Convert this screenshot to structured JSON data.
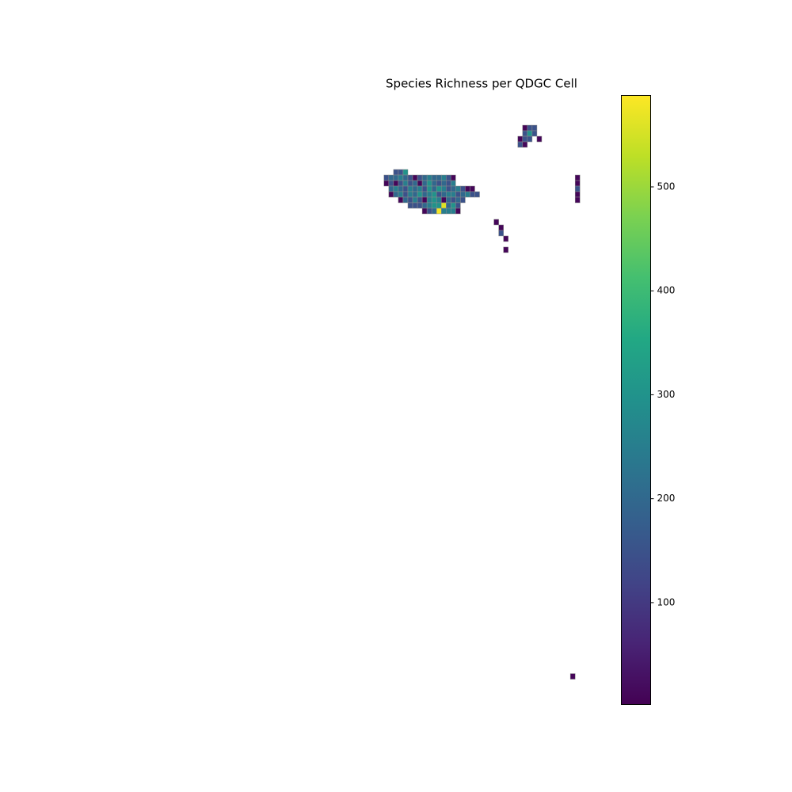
{
  "chart_data": {
    "type": "choropleth",
    "title": "Species Richness per QDGC Cell",
    "colormap": "viridis",
    "cell_size": 0.0625,
    "xlim": [
      -20.25,
      -14.45
    ],
    "ylim": [
      26.86,
      33.74
    ],
    "clim": [
      2,
      588
    ],
    "cticks": [
      100,
      200,
      300,
      400,
      500
    ],
    "x": [
      -17.175,
      -17.1125,
      -17.05,
      -17.3,
      -17.2375,
      -17.175,
      -17.1125,
      -17.05,
      -16.9875,
      -16.925,
      -16.8625,
      -16.8,
      -16.7375,
      -16.675,
      -16.6125,
      -16.55,
      -16.4875,
      -16.425,
      -17.3,
      -17.2375,
      -17.175,
      -17.1125,
      -17.05,
      -16.9875,
      -16.925,
      -16.8625,
      -16.8,
      -16.7375,
      -16.675,
      -16.6125,
      -16.55,
      -16.4875,
      -16.425,
      -17.2375,
      -17.175,
      -17.1125,
      -17.05,
      -16.9875,
      -16.925,
      -16.8625,
      -16.8,
      -16.7375,
      -16.675,
      -16.6125,
      -16.55,
      -16.4875,
      -16.425,
      -16.3625,
      -16.3,
      -16.2375,
      -16.175,
      -17.2375,
      -17.175,
      -17.1125,
      -17.05,
      -16.9875,
      -16.925,
      -16.8625,
      -16.8,
      -16.7375,
      -16.675,
      -16.6125,
      -16.55,
      -16.4875,
      -16.425,
      -16.3625,
      -16.3,
      -16.2375,
      -16.175,
      -16.1125,
      -17.1125,
      -17.05,
      -16.9875,
      -16.925,
      -16.8625,
      -16.8,
      -16.7375,
      -16.675,
      -16.6125,
      -16.55,
      -16.4875,
      -16.425,
      -16.3625,
      -16.3,
      -16.9875,
      -16.925,
      -16.8625,
      -16.8,
      -16.7375,
      -16.675,
      -16.6125,
      -16.55,
      -16.4875,
      -16.425,
      -16.3625,
      -16.8,
      -16.7375,
      -16.675,
      -16.6125,
      -16.55,
      -16.4875,
      -16.425,
      -16.3625,
      -15.4875,
      -15.425,
      -15.3625,
      -15.4875,
      -15.425,
      -15.3625,
      -15.55,
      -15.4875,
      -15.425,
      -15.3,
      -15.55,
      -15.4875,
      -15.8625,
      -15.8,
      -15.8,
      -15.7375,
      -15.7375,
      -14.8,
      -14.8,
      -14.8,
      -14.8,
      -14.8,
      -14.8625
    ],
    "y": [
      32.8375,
      32.8375,
      32.8375,
      32.775,
      32.775,
      32.775,
      32.775,
      32.775,
      32.775,
      32.775,
      32.775,
      32.775,
      32.775,
      32.775,
      32.775,
      32.775,
      32.775,
      32.775,
      32.7125,
      32.7125,
      32.7125,
      32.7125,
      32.7125,
      32.7125,
      32.7125,
      32.7125,
      32.7125,
      32.7125,
      32.7125,
      32.7125,
      32.7125,
      32.7125,
      32.7125,
      32.65,
      32.65,
      32.65,
      32.65,
      32.65,
      32.65,
      32.65,
      32.65,
      32.65,
      32.65,
      32.65,
      32.65,
      32.65,
      32.65,
      32.65,
      32.65,
      32.65,
      32.65,
      32.5875,
      32.5875,
      32.5875,
      32.5875,
      32.5875,
      32.5875,
      32.5875,
      32.5875,
      32.5875,
      32.5875,
      32.5875,
      32.5875,
      32.5875,
      32.5875,
      32.5875,
      32.5875,
      32.5875,
      32.5875,
      32.5875,
      32.525,
      32.525,
      32.525,
      32.525,
      32.525,
      32.525,
      32.525,
      32.525,
      32.525,
      32.525,
      32.525,
      32.525,
      32.525,
      32.525,
      32.4625,
      32.4625,
      32.4625,
      32.4625,
      32.4625,
      32.4625,
      32.4625,
      32.4625,
      32.4625,
      32.4625,
      32.4625,
      32.4,
      32.4,
      32.4,
      32.4,
      32.4,
      32.4,
      32.4,
      32.4,
      33.3375,
      33.3375,
      33.3375,
      33.275,
      33.275,
      33.275,
      33.2125,
      33.2125,
      33.2125,
      33.2125,
      33.15,
      33.15,
      32.275,
      32.2125,
      32.15,
      32.0875,
      31.9625,
      32.775,
      32.7125,
      32.65,
      32.5875,
      32.525,
      27.15
    ],
    "values": [
      150,
      150,
      300,
      150,
      200,
      200,
      250,
      200,
      150,
      10,
      150,
      200,
      250,
      200,
      200,
      250,
      150,
      10,
      10,
      150,
      10,
      150,
      250,
      150,
      200,
      10,
      200,
      300,
      200,
      150,
      200,
      150,
      250,
      200,
      250,
      200,
      150,
      250,
      200,
      250,
      150,
      300,
      200,
      300,
      250,
      150,
      200,
      250,
      150,
      10,
      10,
      10,
      200,
      250,
      150,
      250,
      200,
      300,
      200,
      250,
      300,
      150,
      200,
      250,
      250,
      150,
      200,
      250,
      150,
      150,
      10,
      200,
      150,
      250,
      150,
      10,
      250,
      300,
      250,
      10,
      200,
      150,
      200,
      150,
      150,
      150,
      150,
      200,
      250,
      300,
      300,
      560,
      200,
      300,
      150,
      10,
      150,
      200,
      580,
      250,
      250,
      250,
      10,
      10,
      150,
      150,
      150,
      300,
      150,
      10,
      150,
      150,
      10,
      150,
      10,
      10,
      10,
      150,
      10,
      10,
      10,
      10,
      150,
      10,
      10,
      10
    ]
  }
}
